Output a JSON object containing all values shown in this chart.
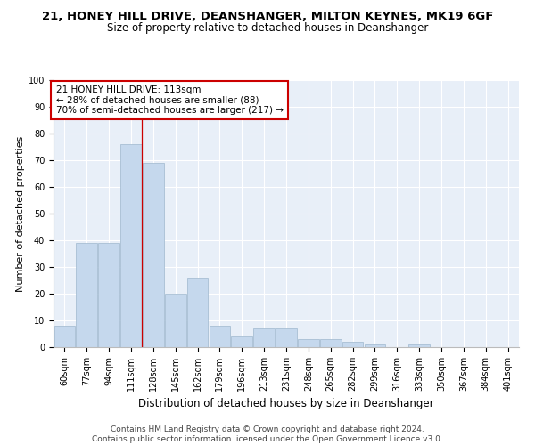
{
  "title": "21, HONEY HILL DRIVE, DEANSHANGER, MILTON KEYNES, MK19 6GF",
  "subtitle": "Size of property relative to detached houses in Deanshanger",
  "xlabel": "Distribution of detached houses by size in Deanshanger",
  "ylabel": "Number of detached properties",
  "categories": [
    "60sqm",
    "77sqm",
    "94sqm",
    "111sqm",
    "128sqm",
    "145sqm",
    "162sqm",
    "179sqm",
    "196sqm",
    "213sqm",
    "231sqm",
    "248sqm",
    "265sqm",
    "282sqm",
    "299sqm",
    "316sqm",
    "333sqm",
    "350sqm",
    "367sqm",
    "384sqm",
    "401sqm"
  ],
  "values": [
    8,
    39,
    39,
    76,
    69,
    20,
    26,
    8,
    4,
    7,
    7,
    3,
    3,
    2,
    1,
    0,
    1,
    0,
    0,
    0,
    0
  ],
  "bar_color": "#c5d8ed",
  "bar_edge_color": "#a8bfd4",
  "vline_x": 3.5,
  "annotation_text": "21 HONEY HILL DRIVE: 113sqm\n← 28% of detached houses are smaller (88)\n70% of semi-detached houses are larger (217) →",
  "annotation_box_color": "#ffffff",
  "annotation_box_edge": "#cc0000",
  "ylim": [
    0,
    100
  ],
  "yticks": [
    0,
    10,
    20,
    30,
    40,
    50,
    60,
    70,
    80,
    90,
    100
  ],
  "plot_bg_color": "#e8eff8",
  "grid_color": "#ffffff",
  "footer_line1": "Contains HM Land Registry data © Crown copyright and database right 2024.",
  "footer_line2": "Contains public sector information licensed under the Open Government Licence v3.0.",
  "title_fontsize": 9.5,
  "subtitle_fontsize": 8.5,
  "xlabel_fontsize": 8.5,
  "ylabel_fontsize": 8,
  "tick_fontsize": 7,
  "annotation_fontsize": 7.5,
  "footer_fontsize": 6.5
}
